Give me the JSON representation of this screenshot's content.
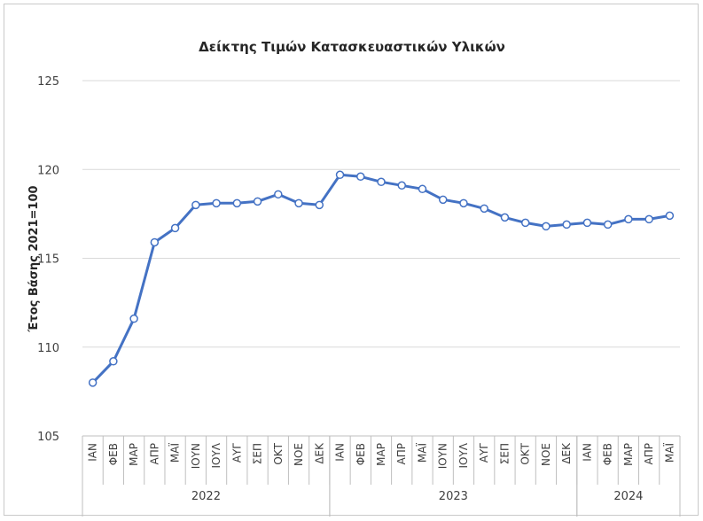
{
  "chart_data": {
    "type": "line",
    "title": "Δείκτης Τιμών Κατασκευαστικών Υλικών",
    "ylabel": "Έτος Βάσης 2021=100",
    "xlabel": "",
    "ylim": [
      105,
      125
    ],
    "yticks": [
      "105",
      "110",
      "115",
      "120",
      "125"
    ],
    "grid": true,
    "color": "#4472c4",
    "groups": [
      {
        "year": "2022",
        "months": [
          "ΙΑΝ",
          "ΦΕΒ",
          "ΜΑΡ",
          "ΑΠΡ",
          "ΜΑΪ",
          "ΙΟΥΝ",
          "ΙΟΥΛ",
          "ΑΥΓ",
          "ΣΕΠ",
          "ΟΚΤ",
          "ΝΟΕ",
          "ΔΕΚ"
        ]
      },
      {
        "year": "2023",
        "months": [
          "ΙΑΝ",
          "ΦΕΒ",
          "ΜΑΡ",
          "ΑΠΡ",
          "ΜΑΪ",
          "ΙΟΥΝ",
          "ΙΟΥΛ",
          "ΑΥΓ",
          "ΣΕΠ",
          "ΟΚΤ",
          "ΝΟΕ",
          "ΔΕΚ"
        ]
      },
      {
        "year": "2024",
        "months": [
          "ΙΑΝ",
          "ΦΕΒ",
          "ΜΑΡ",
          "ΑΠΡ",
          "ΜΑΪ"
        ]
      }
    ],
    "values": [
      108.0,
      109.2,
      111.6,
      115.9,
      116.7,
      118.0,
      118.1,
      118.1,
      118.2,
      118.6,
      118.1,
      118.0,
      119.7,
      119.6,
      119.3,
      119.1,
      118.9,
      118.3,
      118.1,
      117.8,
      117.3,
      117.0,
      116.8,
      116.9,
      117.0,
      116.9,
      117.2,
      117.2,
      117.4
    ]
  }
}
